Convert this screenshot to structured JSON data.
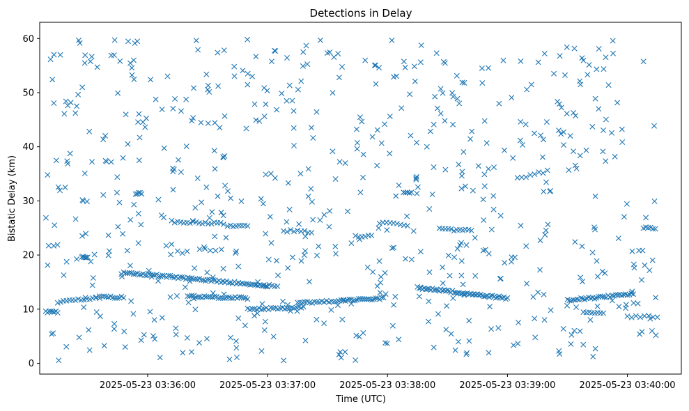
{
  "chart_data": {
    "type": "scatter",
    "title": "Detections in Delay",
    "xlabel": "Time (UTC)",
    "ylabel": "Bistatic Delay (km)",
    "marker": "x",
    "series_color": "#1f77b4",
    "grid": false,
    "legend": "none",
    "xlim": [
      "2025-05-23 03:35:06",
      "2025-05-23 03:40:27"
    ],
    "ylim": [
      -2,
      63
    ],
    "x_ticks": [
      "2025-05-23 03:36:00",
      "2025-05-23 03:37:00",
      "2025-05-23 03:38:00",
      "2025-05-23 03:39:00",
      "2025-05-23 03:40:00"
    ],
    "y_ticks": [
      "0",
      "10",
      "20",
      "30",
      "40",
      "50",
      "60"
    ],
    "series": [
      {
        "tracks": [
          {
            "x_start": "2025-05-23 03:35:09",
            "x_end": "2025-05-23 03:35:15",
            "y_start": 9.5,
            "y_end": 9.5,
            "points": 8
          },
          {
            "x_start": "2025-05-23 03:35:15",
            "x_end": "2025-05-23 03:35:34",
            "y_start": 11.3,
            "y_end": 12.0,
            "points": 14
          },
          {
            "x_start": "2025-05-23 03:35:36",
            "x_end": "2025-05-23 03:35:48",
            "y_start": 12.2,
            "y_end": 12.2,
            "points": 12
          },
          {
            "x_start": "2025-05-23 03:35:48",
            "x_end": "2025-05-23 03:37:00",
            "y_start": 16.8,
            "y_end": 14.3,
            "points": 75
          },
          {
            "x_start": "2025-05-23 03:36:20",
            "x_end": "2025-05-23 03:36:50",
            "y_start": 12.4,
            "y_end": 12.0,
            "points": 30
          },
          {
            "x_start": "2025-05-23 03:36:50",
            "x_end": "2025-05-23 03:37:18",
            "y_start": 10.0,
            "y_end": 10.3,
            "points": 25
          },
          {
            "x_start": "2025-05-23 03:37:15",
            "x_end": "2025-05-23 03:37:38",
            "y_start": 11.2,
            "y_end": 11.6,
            "points": 20
          },
          {
            "x_start": "2025-05-23 03:37:38",
            "x_end": "2025-05-23 03:37:58",
            "y_start": 11.6,
            "y_end": 12.0,
            "points": 22
          },
          {
            "x_start": "2025-05-23 03:38:15",
            "x_end": "2025-05-23 03:39:00",
            "y_start": 14.0,
            "y_end": 12.0,
            "points": 55
          },
          {
            "x_start": "2025-05-23 03:39:30",
            "x_end": "2025-05-23 03:40:03",
            "y_start": 11.6,
            "y_end": 12.8,
            "points": 35
          },
          {
            "x_start": "2025-05-23 03:39:38",
            "x_end": "2025-05-23 03:39:48",
            "y_start": 9.3,
            "y_end": 9.3,
            "points": 8
          },
          {
            "x_start": "2025-05-23 03:40:00",
            "x_end": "2025-05-23 03:40:15",
            "y_start": 8.6,
            "y_end": 8.6,
            "points": 8
          },
          {
            "x_start": "2025-05-23 03:35:27",
            "x_end": "2025-05-23 03:35:30",
            "y_start": 19.6,
            "y_end": 19.6,
            "points": 6
          },
          {
            "x_start": "2025-05-23 03:35:54",
            "x_end": "2025-05-23 03:35:57",
            "y_start": 31.3,
            "y_end": 31.3,
            "points": 5
          },
          {
            "x_start": "2025-05-23 03:36:12",
            "x_end": "2025-05-23 03:36:38",
            "y_start": 26.2,
            "y_end": 25.8,
            "points": 18
          },
          {
            "x_start": "2025-05-23 03:36:40",
            "x_end": "2025-05-23 03:36:50",
            "y_start": 25.4,
            "y_end": 25.4,
            "points": 8
          },
          {
            "x_start": "2025-05-23 03:37:08",
            "x_end": "2025-05-23 03:37:22",
            "y_start": 24.5,
            "y_end": 24.3,
            "points": 9
          },
          {
            "x_start": "2025-05-23 03:37:44",
            "x_end": "2025-05-23 03:37:52",
            "y_start": 23.5,
            "y_end": 23.5,
            "points": 6
          },
          {
            "x_start": "2025-05-23 03:37:56",
            "x_end": "2025-05-23 03:38:10",
            "y_start": 26.0,
            "y_end": 25.5,
            "points": 9
          },
          {
            "x_start": "2025-05-23 03:38:26",
            "x_end": "2025-05-23 03:38:42",
            "y_start": 24.8,
            "y_end": 24.5,
            "points": 12
          },
          {
            "x_start": "2025-05-23 03:38:08",
            "x_end": "2025-05-23 03:38:12",
            "y_start": 31.5,
            "y_end": 31.5,
            "points": 5
          },
          {
            "x_start": "2025-05-23 03:39:05",
            "x_end": "2025-05-23 03:39:20",
            "y_start": 34.2,
            "y_end": 35.5,
            "points": 8
          },
          {
            "x_start": "2025-05-23 03:40:08",
            "x_end": "2025-05-23 03:40:14",
            "y_start": 25.0,
            "y_end": 25.0,
            "points": 6
          },
          {
            "x_start": "2025-05-23 03:36:26",
            "x_end": "2025-05-23 03:36:34",
            "y_start": 21.0,
            "y_end": 21.0,
            "points": 4
          },
          {
            "x_start": "2025-05-23 03:36:58",
            "x_end": "2025-05-23 03:37:05",
            "y_start": 14.4,
            "y_end": 14.4,
            "points": 6
          }
        ],
        "scatter_count": 640,
        "scatter_x_range": [
          "2025-05-23 03:35:09",
          "2025-05-23 03:40:15"
        ],
        "scatter_y_range": [
          0.5,
          60
        ]
      }
    ]
  }
}
